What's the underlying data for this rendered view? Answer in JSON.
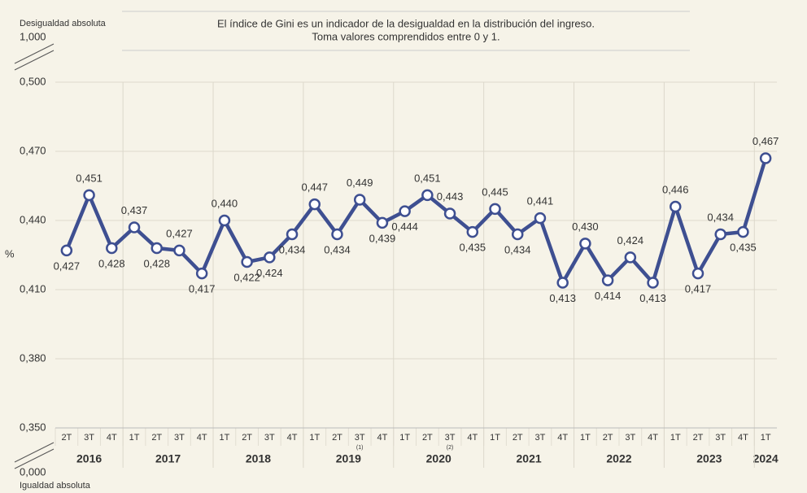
{
  "chart_data": {
    "type": "line",
    "title": [
      "El índice de Gini es un indicador de la desigualdad en la distribución del ingreso.",
      "Toma valores comprendidos entre 0 y 1."
    ],
    "y_label": "%",
    "top_annotation": "Desigualdad absoluta",
    "bottom_annotation": "Igualdad absoluta",
    "break_top": "1,000",
    "break_bottom": "0,000",
    "categories": [
      "2T",
      "3T",
      "4T",
      "1T",
      "2T",
      "3T",
      "4T",
      "1T",
      "2T",
      "3T",
      "4T",
      "1T",
      "2T",
      "3T",
      "4T",
      "1T",
      "2T",
      "3T",
      "4T",
      "1T",
      "2T",
      "3T",
      "4T",
      "1T",
      "2T",
      "3T",
      "4T",
      "1T",
      "2T",
      "3T",
      "4T",
      "1T"
    ],
    "category_notes": [
      null,
      null,
      null,
      null,
      null,
      null,
      null,
      null,
      null,
      null,
      null,
      null,
      null,
      "(1)",
      null,
      null,
      null,
      "(2)",
      null,
      null,
      null,
      null,
      null,
      null,
      null,
      null,
      null,
      null,
      null,
      null,
      null,
      null
    ],
    "groups": [
      "2016",
      "2017",
      "2018",
      "2019",
      "2020",
      "2021",
      "2022",
      "2023",
      "2024"
    ],
    "series": [
      {
        "name": "Gini",
        "color": "#3e4f91",
        "values": [
          0.427,
          0.451,
          0.428,
          0.437,
          0.428,
          0.427,
          0.417,
          0.44,
          0.422,
          0.424,
          0.434,
          0.447,
          0.434,
          0.449,
          0.439,
          0.444,
          0.451,
          0.443,
          0.435,
          0.445,
          0.434,
          0.441,
          0.413,
          0.43,
          0.414,
          0.424,
          0.413,
          0.446,
          0.417,
          0.434,
          0.435,
          0.467
        ],
        "value_labels": [
          "0,427",
          "0,451",
          "0,428",
          "0,437",
          "0,428",
          "0,427",
          "0,417",
          "0,440",
          "0,422",
          "0,424",
          "0,434",
          "0,447",
          "0,434",
          "0,449",
          "0,439",
          "0,444",
          "0,451",
          "0,443",
          "0,435",
          "0,445",
          "0,434",
          "0,441",
          "0,413",
          "0,430",
          "0,414",
          "0,424",
          "0,413",
          "0,446",
          "0,417",
          "0,434",
          "0,435",
          "0,467"
        ]
      }
    ],
    "ylim": [
      0.35,
      0.5
    ],
    "yticks": [
      {
        "value": 0.35,
        "label": "0,350"
      },
      {
        "value": 0.38,
        "label": "0,380"
      },
      {
        "value": 0.41,
        "label": "0,410"
      },
      {
        "value": 0.44,
        "label": "0,440"
      },
      {
        "value": 0.47,
        "label": "0,470"
      },
      {
        "value": 0.5,
        "label": "0,500"
      }
    ],
    "grid": true
  }
}
